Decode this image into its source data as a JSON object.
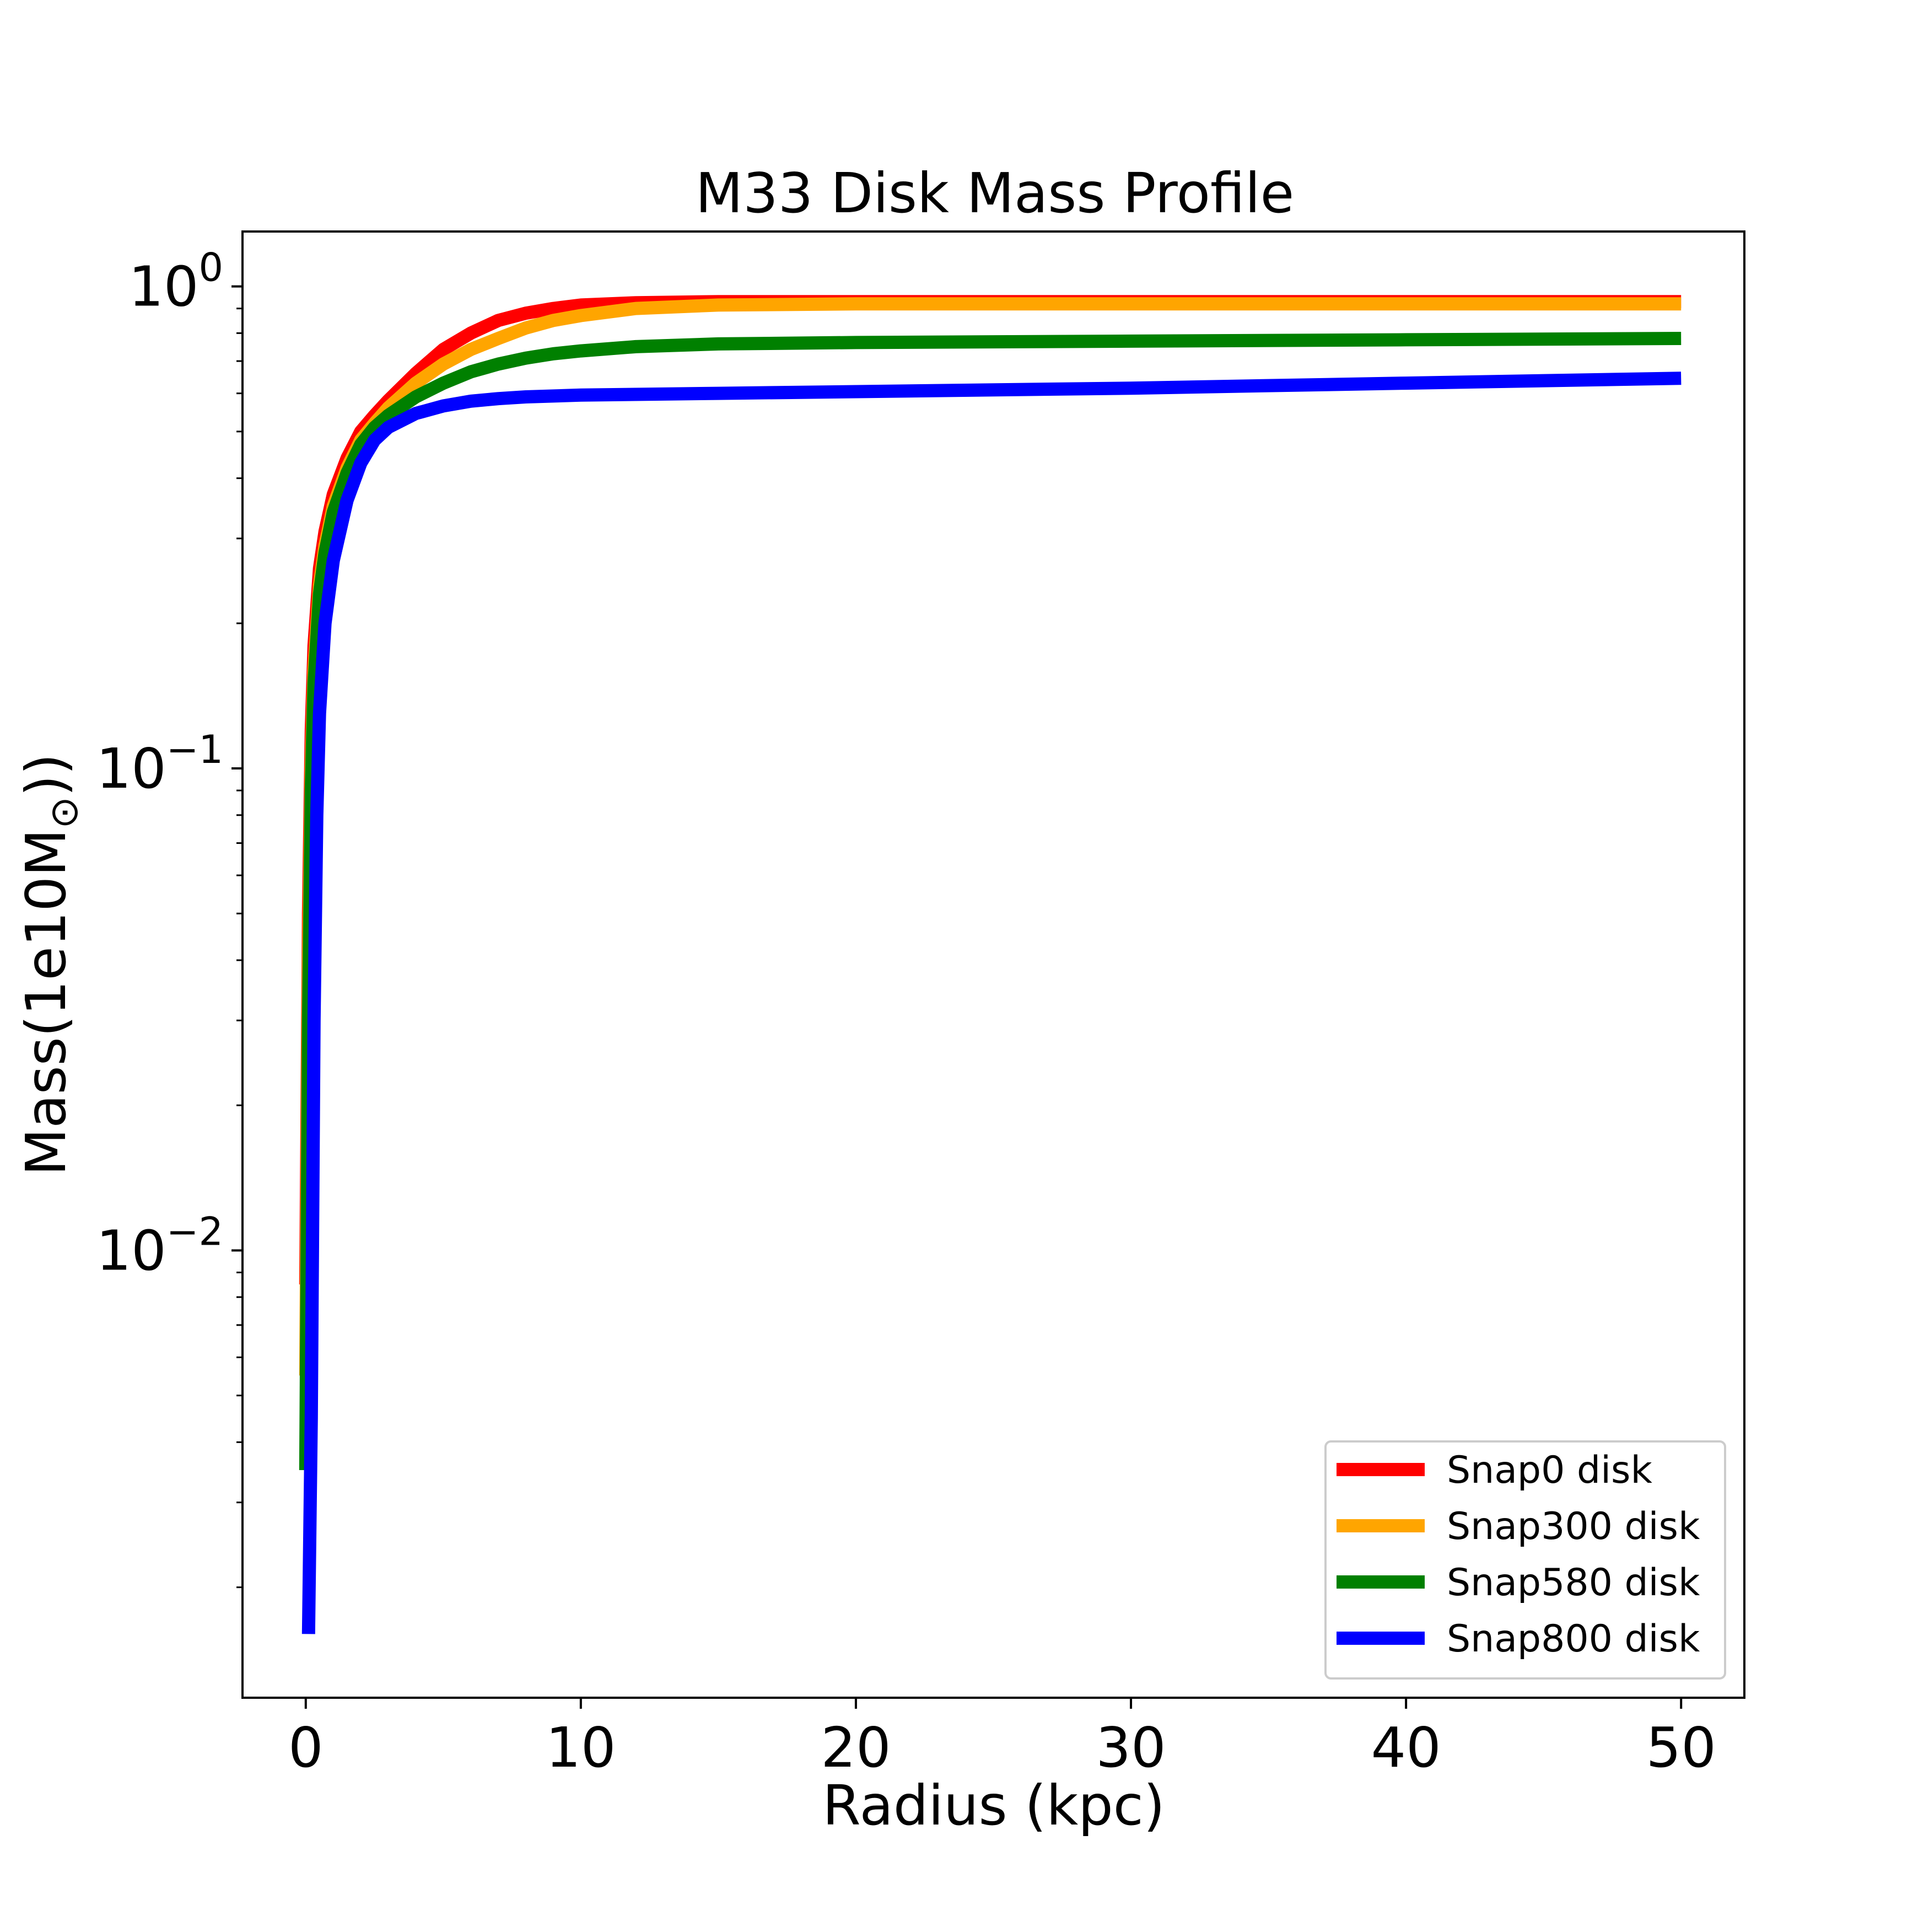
{
  "chart_data": {
    "type": "line",
    "title": "M33 Disk Mass Profile",
    "xlabel": "Radius (kpc)",
    "ylabel": "Mass(1e10M",
    "ylabel_subscript": "⊙",
    "ylabel_suffix": "))",
    "x_scale": "linear",
    "y_scale": "log",
    "xlim": [
      -2.3,
      52.3
    ],
    "ylim": [
      0.00118,
      1.3
    ],
    "x_ticks": [
      0,
      10,
      20,
      30,
      40,
      50
    ],
    "x_tick_labels": [
      "0",
      "10",
      "20",
      "30",
      "40",
      "50"
    ],
    "y_ticks": [
      0.01,
      0.1,
      1
    ],
    "y_tick_labels": [
      {
        "base": "10",
        "exp": "−2"
      },
      {
        "base": "10",
        "exp": "−1"
      },
      {
        "base": "10",
        "exp": "0"
      }
    ],
    "grid": false,
    "legend_position": "lower-right",
    "series": [
      {
        "name": "Snap0 disk",
        "color": "#ff0000",
        "x": [
          0.0,
          0.1,
          0.2,
          0.3,
          0.5,
          0.7,
          1.0,
          1.5,
          2.0,
          2.5,
          3.0,
          4.0,
          5.0,
          6.0,
          7.0,
          8.0,
          9.0,
          10.0,
          12.0,
          15.0,
          20.0,
          30.0,
          40.0,
          50.0
        ],
        "y": [
          0.0085,
          0.05,
          0.12,
          0.18,
          0.26,
          0.31,
          0.37,
          0.44,
          0.5,
          0.54,
          0.58,
          0.66,
          0.74,
          0.8,
          0.85,
          0.88,
          0.9,
          0.915,
          0.925,
          0.93,
          0.93,
          0.93,
          0.93,
          0.93
        ]
      },
      {
        "name": "Snap300 disk",
        "color": "#ffa500",
        "x": [
          0.0,
          0.1,
          0.2,
          0.3,
          0.5,
          0.7,
          1.0,
          1.5,
          2.0,
          2.5,
          3.0,
          4.0,
          5.0,
          6.0,
          7.0,
          8.0,
          9.0,
          10.0,
          12.0,
          15.0,
          20.0,
          30.0,
          40.0,
          50.0
        ],
        "y": [
          0.0055,
          0.04,
          0.1,
          0.16,
          0.24,
          0.29,
          0.35,
          0.42,
          0.48,
          0.52,
          0.56,
          0.63,
          0.69,
          0.74,
          0.78,
          0.82,
          0.85,
          0.87,
          0.9,
          0.915,
          0.92,
          0.92,
          0.92,
          0.92
        ]
      },
      {
        "name": "Snap580 disk",
        "color": "#008000",
        "x": [
          0.0,
          0.1,
          0.2,
          0.3,
          0.5,
          0.7,
          1.0,
          1.5,
          2.0,
          2.5,
          3.0,
          4.0,
          5.0,
          6.0,
          7.0,
          8.0,
          9.0,
          10.0,
          12.0,
          15.0,
          20.0,
          30.0,
          40.0,
          50.0
        ],
        "y": [
          0.0035,
          0.03,
          0.09,
          0.15,
          0.23,
          0.28,
          0.34,
          0.41,
          0.47,
          0.51,
          0.54,
          0.59,
          0.63,
          0.665,
          0.69,
          0.71,
          0.725,
          0.735,
          0.75,
          0.76,
          0.765,
          0.77,
          0.775,
          0.78
        ]
      },
      {
        "name": "Snap800 disk",
        "color": "#0000ff",
        "x": [
          0.1,
          0.2,
          0.3,
          0.4,
          0.5,
          0.7,
          1.0,
          1.5,
          2.0,
          2.5,
          3.0,
          4.0,
          5.0,
          6.0,
          7.0,
          8.0,
          10.0,
          15.0,
          20.0,
          30.0,
          40.0,
          50.0
        ],
        "y": [
          0.0016,
          0.0045,
          0.03,
          0.08,
          0.13,
          0.2,
          0.27,
          0.36,
          0.43,
          0.48,
          0.51,
          0.545,
          0.565,
          0.578,
          0.585,
          0.59,
          0.595,
          0.6,
          0.605,
          0.615,
          0.63,
          0.645
        ]
      }
    ]
  }
}
